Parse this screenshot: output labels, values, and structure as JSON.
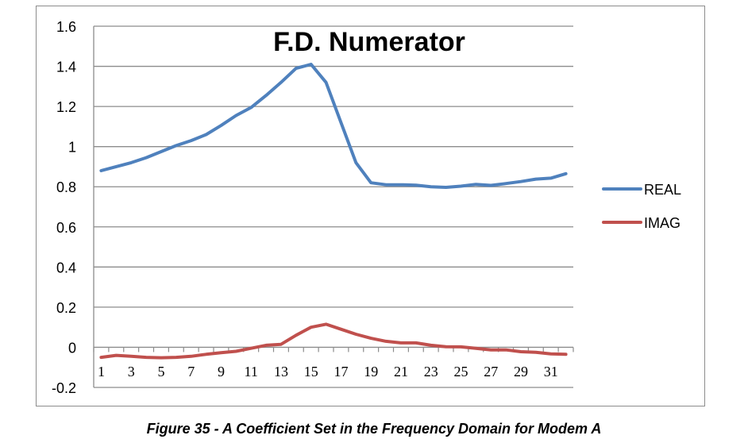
{
  "figure": {
    "caption": "Figure 35 - A Coefficient Set in the Frequency Domain for Modem A"
  },
  "chart_data": {
    "type": "line",
    "title": "F.D. Numerator",
    "xlabel": "",
    "ylabel": "",
    "ylim": [
      -0.2,
      1.6
    ],
    "yticks": [
      -0.2,
      0,
      0.2,
      0.4,
      0.6,
      0.8,
      1,
      1.2,
      1.4,
      1.6
    ],
    "ytick_labels": [
      "-0.2",
      "0",
      "0.2",
      "0.4",
      "0.6",
      "0.8",
      "1",
      "1.2",
      "1.4",
      "1.6"
    ],
    "x": [
      1,
      2,
      3,
      4,
      5,
      6,
      7,
      8,
      9,
      10,
      11,
      12,
      13,
      14,
      15,
      16,
      17,
      18,
      19,
      20,
      21,
      22,
      23,
      24,
      25,
      26,
      27,
      28,
      29,
      30,
      31,
      32
    ],
    "xtick_labels": [
      "1",
      "3",
      "5",
      "7",
      "9",
      "11",
      "13",
      "15",
      "17",
      "19",
      "21",
      "23",
      "25",
      "27",
      "29",
      "31"
    ],
    "grid": true,
    "legend_position": "right",
    "series": [
      {
        "name": "REAL",
        "color": "#4f81bd",
        "values": [
          0.88,
          0.9,
          0.92,
          0.945,
          0.975,
          1.005,
          1.03,
          1.06,
          1.105,
          1.155,
          1.195,
          1.255,
          1.32,
          1.39,
          1.41,
          1.32,
          1.12,
          0.92,
          0.82,
          0.81,
          0.81,
          0.808,
          0.8,
          0.797,
          0.803,
          0.812,
          0.807,
          0.816,
          0.826,
          0.838,
          0.843,
          0.865
        ]
      },
      {
        "name": "IMAG",
        "color": "#c0504d",
        "values": [
          -0.05,
          -0.04,
          -0.045,
          -0.05,
          -0.052,
          -0.05,
          -0.045,
          -0.035,
          -0.027,
          -0.02,
          -0.005,
          0.01,
          0.015,
          0.06,
          0.1,
          0.115,
          0.09,
          0.065,
          0.045,
          0.03,
          0.022,
          0.022,
          0.01,
          0.003,
          0.002,
          -0.005,
          -0.013,
          -0.013,
          -0.022,
          -0.025,
          -0.033,
          -0.035
        ]
      }
    ]
  }
}
